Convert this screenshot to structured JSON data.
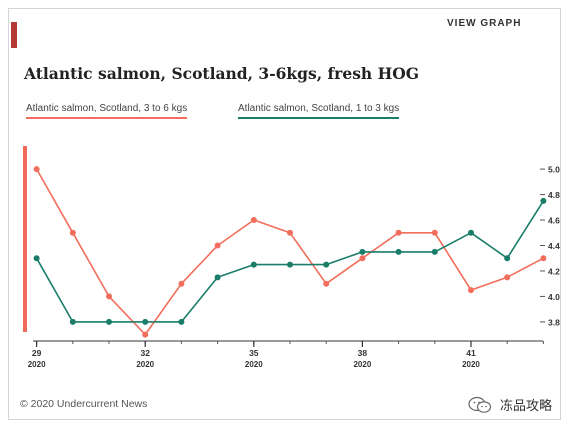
{
  "header": {
    "view_graph": "VIEW GRAPH"
  },
  "footer": {
    "copyright": "© 2020 Undercurrent News"
  },
  "watermark": {
    "text": "冻品攻略"
  },
  "colors": {
    "series1": "#f26d5b",
    "series2": "#1a7d6a",
    "accent": "#b33a34",
    "left_bar": "#f06a5a"
  },
  "chart_data": {
    "type": "line",
    "title": "Atlantic salmon, Scotland, 3-6kgs, fresh HOG",
    "x": [
      29,
      30,
      31,
      32,
      33,
      34,
      35,
      36,
      37,
      38,
      39,
      40,
      41,
      42,
      43
    ],
    "xticks": [
      {
        "week": "29",
        "year": "2020",
        "x": 29
      },
      {
        "week": "32",
        "year": "2020",
        "x": 32
      },
      {
        "week": "35",
        "year": "2020",
        "x": 35
      },
      {
        "week": "38",
        "year": "2020",
        "x": 38
      },
      {
        "week": "41",
        "year": "2020",
        "x": 41
      }
    ],
    "yticks": [
      "3.8",
      "4.0",
      "4.2",
      "4.4",
      "4.6",
      "4.8",
      "5.0"
    ],
    "ylim": [
      3.65,
      5.15
    ],
    "xlim": [
      28.9,
      43.1
    ],
    "series": [
      {
        "name": "Atlantic salmon, Scotland, 3 to 6 kgs",
        "color": "#f26d5b",
        "values": [
          5.0,
          4.5,
          4.0,
          3.7,
          4.1,
          4.4,
          4.6,
          4.5,
          4.1,
          4.3,
          4.5,
          4.5,
          4.05,
          4.15,
          4.3
        ]
      },
      {
        "name": "Atlantic salmon, Scotland, 1 to 3 kgs",
        "color": "#1a7d6a",
        "values": [
          4.3,
          3.8,
          3.8,
          3.8,
          3.8,
          4.15,
          4.25,
          4.25,
          4.25,
          4.35,
          4.35,
          4.35,
          4.5,
          4.3,
          4.75
        ]
      }
    ]
  }
}
